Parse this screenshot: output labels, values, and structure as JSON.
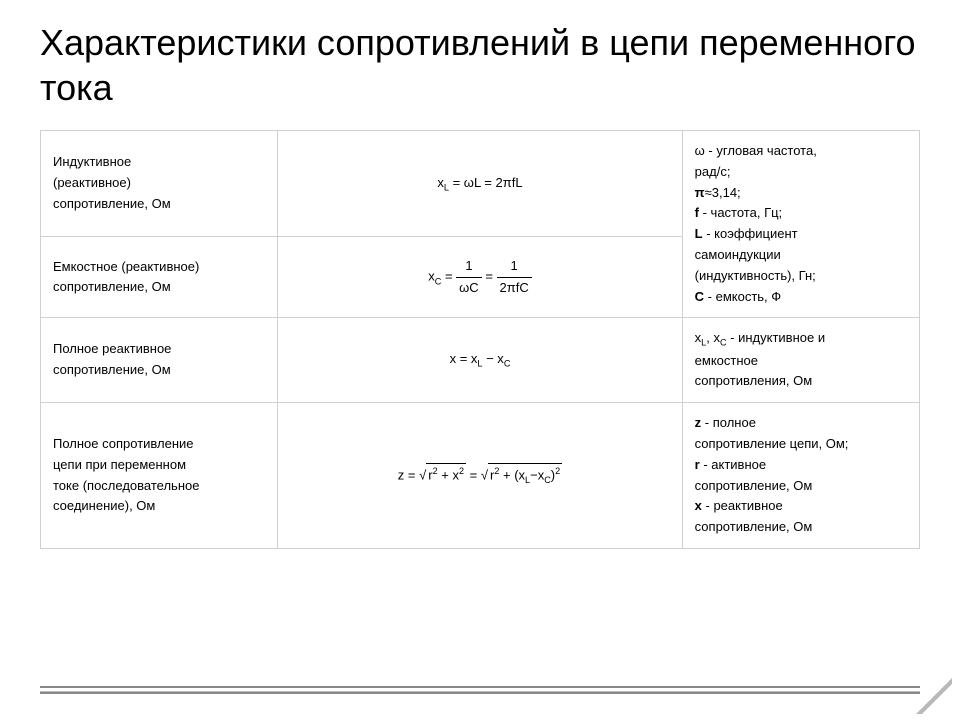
{
  "heading": "Характеристики сопротивлений в цепи переменного тока",
  "table": {
    "cols": [
      "left",
      "mid",
      "right"
    ],
    "rows": [
      {
        "name": "Индуктивное\n(реактивное)\nсопротивление, Ом",
        "formula_html": "x<sub>L</sub> = ωL = 2πfL",
        "legend_html": "ω - угловая частота,<br>рад/с;<br><b>π</b>≈3,14;<br><b>f</b> - частота, Гц;<br><b>L</b> - коэффициент<br>самоиндукции<br>(индуктивность), Гн;<br><b>C</b> - емкость, Ф",
        "legend_rowspan": 2
      },
      {
        "name": "Емкостное (реактивное)\nсопротивление, Ом",
        "formula_html": "x<sub>C</sub> = <span class=\"frac\"><span class=\"num\">1</span><span class=\"den\">ωC</span></span> = <span class=\"frac\"><span class=\"num\">1</span><span class=\"den\">2πfC</span></span>"
      },
      {
        "name": "Полное реактивное\nсопротивление, Ом",
        "formula_html": "x = x<sub>L</sub> − x<sub>C</sub>",
        "legend_html": "x<sub>L</sub>, x<sub>C</sub> - индуктивное и<br>емкостное<br>сопротивления, Ом"
      },
      {
        "name": "Полное сопротивление\nцепи при переменном\nтоке (последовательное\nсоединение), Ом",
        "formula_html": "z = √<span class=\"sqrt\"> r<sup>2</sup> + x<sup>2</sup> </span> = √<span class=\"sqrt\"> r<sup>2</sup> + (x<sub>L</sub>−x<sub>C</sub>)<sup>2</sup> </span>",
        "legend_html": "<b>z</b> - полное<br>сопротивление цепи, Ом;<br><b>r</b> - активное<br>сопротивление, Ом<br><b>x</b> - реактивное<br>сопротивление, Ом"
      }
    ]
  },
  "style": {
    "page_bg": "#ffffff",
    "border_color": "#d0d0d0",
    "heading_fontsize": 36,
    "body_fontsize": 13,
    "formula_fontsize": 17,
    "col_widths_pct": [
      27,
      46,
      27
    ]
  }
}
